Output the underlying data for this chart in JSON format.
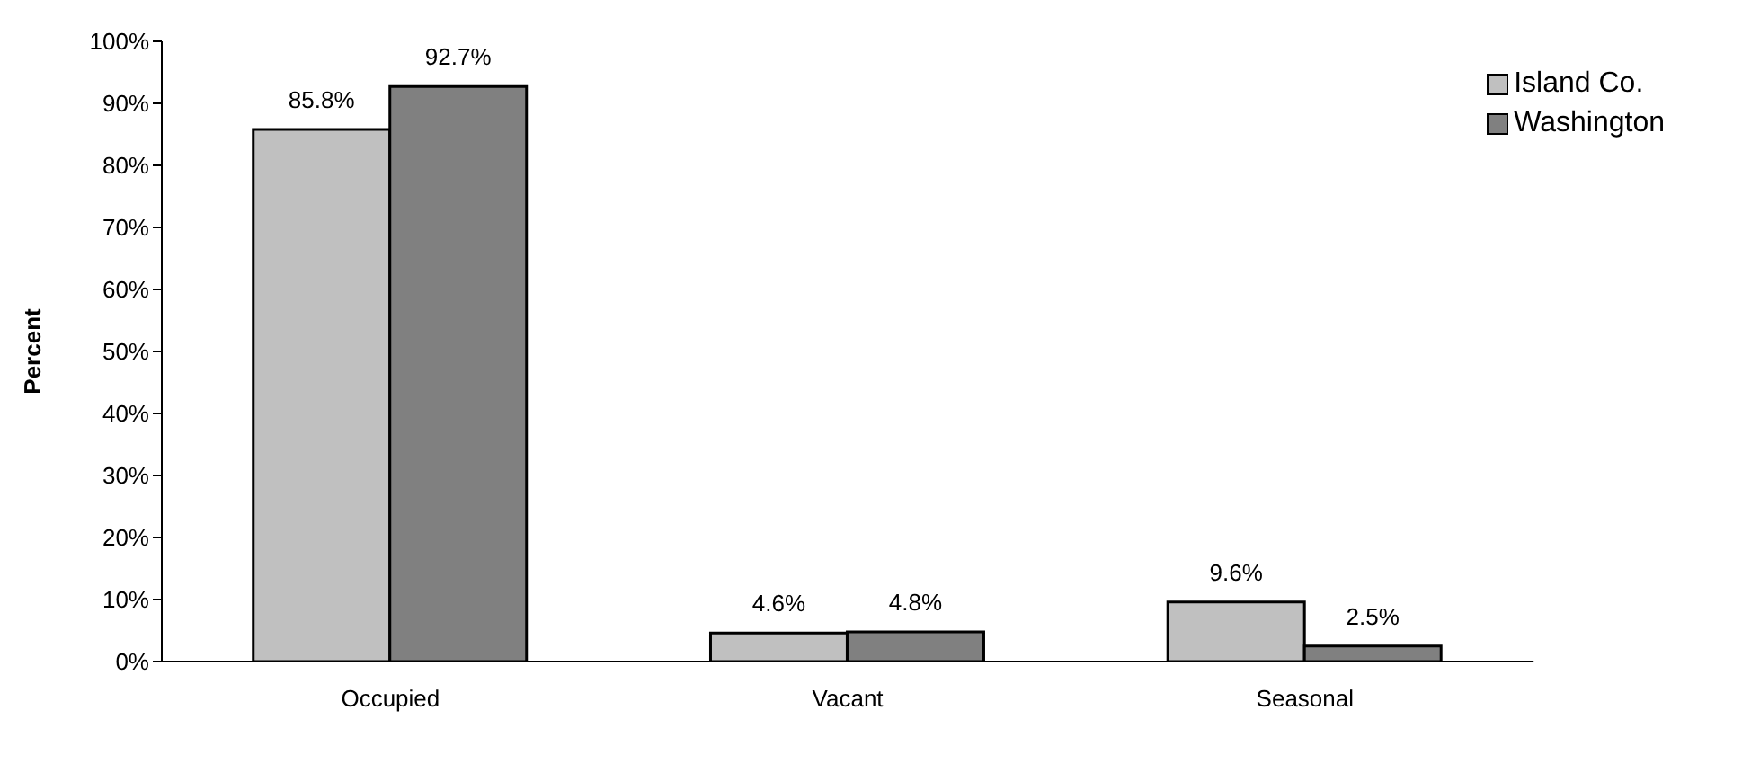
{
  "chart_data": {
    "type": "bar",
    "ylabel": "Percent",
    "categories": [
      "Occupied",
      "Vacant",
      "Seasonal"
    ],
    "series": [
      {
        "name": "Island Co.",
        "color": "#c0c0c0",
        "values": [
          85.8,
          4.6,
          9.6
        ],
        "value_labels": [
          "85.8%",
          "4.6%",
          "9.6%"
        ]
      },
      {
        "name": "Washington",
        "color": "#808080",
        "values": [
          92.7,
          4.8,
          2.5
        ],
        "value_labels": [
          "92.7%",
          "4.8%",
          "2.5%"
        ]
      }
    ],
    "ylim": [
      0,
      100
    ],
    "yticks": [
      {
        "value": 0,
        "label": "0%"
      },
      {
        "value": 10,
        "label": "10%"
      },
      {
        "value": 20,
        "label": "20%"
      },
      {
        "value": 30,
        "label": "30%"
      },
      {
        "value": 40,
        "label": "40%"
      },
      {
        "value": 50,
        "label": "50%"
      },
      {
        "value": 60,
        "label": "60%"
      },
      {
        "value": 70,
        "label": "70%"
      },
      {
        "value": 80,
        "label": "80%"
      },
      {
        "value": 90,
        "label": "90%"
      },
      {
        "value": 100,
        "label": "100%"
      }
    ],
    "grid": false,
    "legend": "top right"
  }
}
